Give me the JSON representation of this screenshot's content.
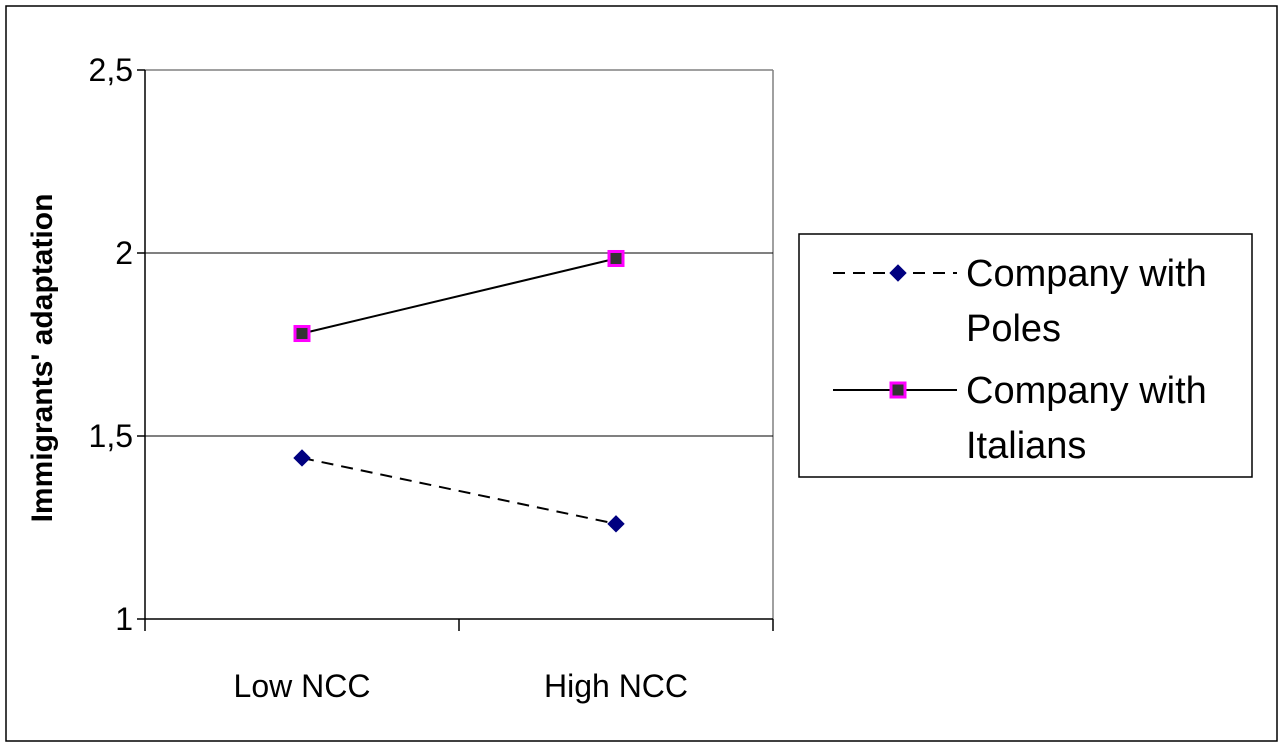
{
  "chart_data": {
    "type": "line",
    "title": "",
    "xlabel": "",
    "ylabel": "Immigrants' adaptation",
    "categories": [
      "Low NCC",
      "High NCC"
    ],
    "ylim": [
      1,
      2.5
    ],
    "yticks": [
      "1",
      "1,5",
      "2",
      "2,5"
    ],
    "ytick_values": [
      1,
      1.5,
      2,
      2.5
    ],
    "grid": "horizontal",
    "legend_position": "right",
    "series": [
      {
        "name": "Company with Poles",
        "legend_lines": [
          "Company with",
          "Poles"
        ],
        "values": [
          1.44,
          1.26
        ],
        "line_style": "dashed",
        "marker": "diamond",
        "line_color": "#000000",
        "marker_color": "#000080"
      },
      {
        "name": "Company with Italians",
        "legend_lines": [
          "Company with",
          "Italians"
        ],
        "values": [
          1.78,
          1.985
        ],
        "line_style": "solid",
        "marker": "square",
        "line_color": "#000000",
        "marker_color": "#333333",
        "marker_edge_color": "#ff00ff"
      }
    ]
  }
}
